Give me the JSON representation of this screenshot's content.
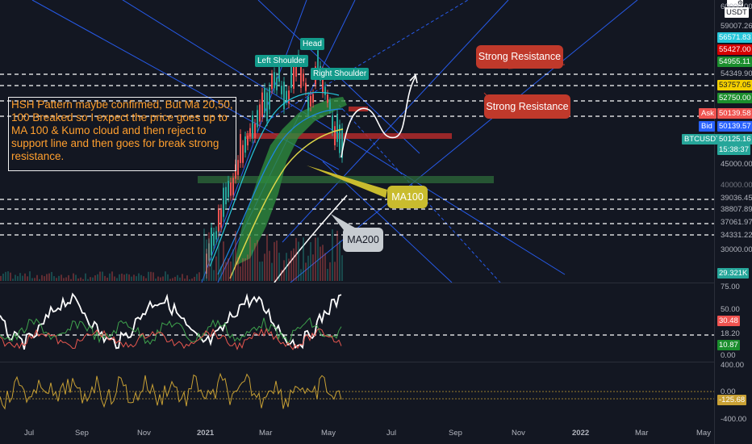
{
  "chart_data": {
    "type": "line",
    "symbol": "BTCUSDT",
    "currency": "USDT",
    "x_ticks": [
      "Jul",
      "Sep",
      "Nov",
      "2021",
      "Mar",
      "May",
      "Jul",
      "Sep",
      "Nov",
      "2022",
      "Mar",
      "May"
    ],
    "price_axis_labels": [
      "60000.00",
      "59007.26",
      "56571.83",
      "55427.00",
      "54955.11",
      "54349.90",
      "53757.05",
      "52750.00",
      "50139.58",
      "50139.57",
      "50125.16",
      "15:38:37",
      "45000.00",
      "40000.00",
      "39036.45",
      "38807.89",
      "37061.97",
      "34331.22",
      "30000.00",
      "29.321K"
    ],
    "bid_ask": {
      "ask_label": "Ask",
      "bid_label": "Bid",
      "ask": "50139.58",
      "bid": "50139.57",
      "last": "50125.16",
      "countdown": "15:38:37"
    },
    "rsi_axis_labels": [
      "75.00",
      "50.00",
      "30.48",
      "18.20",
      "10.87",
      "0.00"
    ],
    "cci_axis_labels": [
      "400.00",
      "0.00",
      "-125.68",
      "-400.00"
    ],
    "pattern_labels": [
      "Left Shoulder",
      "Head",
      "Right Shoulder"
    ],
    "callouts": {
      "strong_resistance_1": "Strong Resistance",
      "strong_resistance_2": "Strong Resistance",
      "ma100": "MA100",
      "ma200": "MA200"
    },
    "annotation": "HSH Pattern maybe confirmed, But Ma 20,50, 100 Breaked so I expect the price goes up to MA 100 & Kumo cloud and then reject  to support line and then goes for break strong resistance.",
    "colors": {
      "background": "#131722",
      "up": "#26a69a",
      "down": "#ef5350",
      "ma100": "#e0d84a",
      "ma200": "#ffffff",
      "annotation": "#ff9f2e",
      "callout_red": "#c0392b",
      "callout_yellow": "#c9bc2e",
      "callout_gray": "#c7ccd1",
      "cci": "#c8a034",
      "rsi_green": "#3fa34d",
      "rsi_red": "#e8574f"
    },
    "grid": false
  }
}
